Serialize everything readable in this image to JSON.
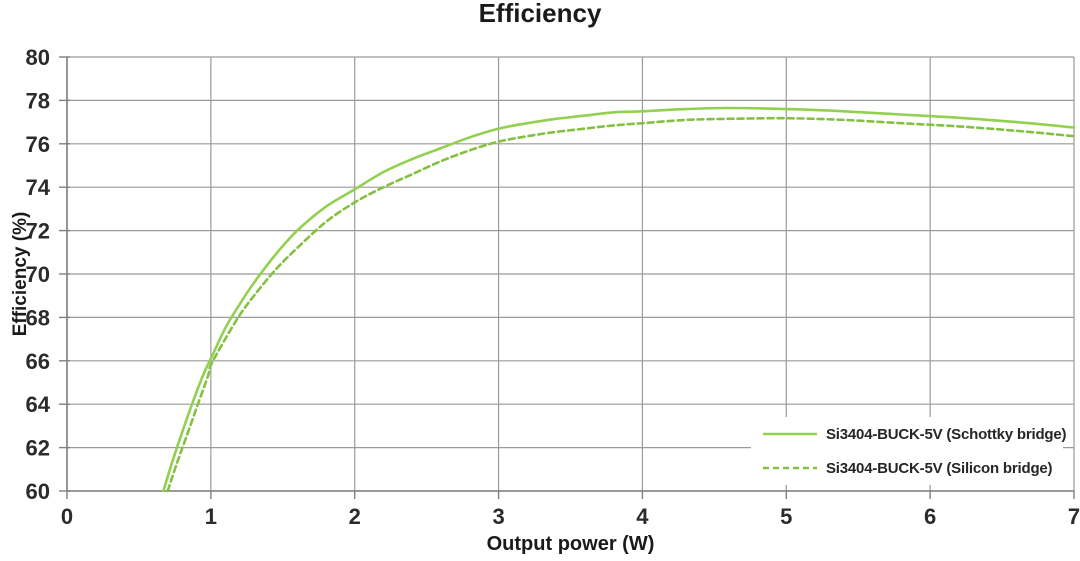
{
  "chart_data": {
    "type": "line",
    "title": "Efficiency",
    "xlabel": "Output power (W)",
    "ylabel": "Efficiency (%)",
    "xlim": [
      0,
      7
    ],
    "ylim": [
      60,
      80
    ],
    "x_ticks": [
      0,
      1,
      2,
      3,
      4,
      5,
      6,
      7
    ],
    "y_ticks": [
      60,
      62,
      64,
      66,
      68,
      70,
      72,
      74,
      76,
      78,
      80
    ],
    "grid": true,
    "legend_position": "inside-bottom-right",
    "colors": {
      "gridline": "#9a9a9a",
      "axis": "#808080",
      "tick_text": "#2b2b2b",
      "title_text": "#1a1a1a"
    },
    "series": [
      {
        "name": "Si3404-BUCK-5V (Schottky bridge)",
        "style": "solid",
        "color": "#92d050",
        "points": [
          [
            0.67,
            60.0
          ],
          [
            0.73,
            61.3
          ],
          [
            0.8,
            62.7
          ],
          [
            0.88,
            64.2
          ],
          [
            0.95,
            65.4
          ],
          [
            1.0,
            66.1
          ],
          [
            1.1,
            67.5
          ],
          [
            1.2,
            68.6
          ],
          [
            1.3,
            69.6
          ],
          [
            1.45,
            70.9
          ],
          [
            1.6,
            72.0
          ],
          [
            1.8,
            73.1
          ],
          [
            2.0,
            73.9
          ],
          [
            2.2,
            74.7
          ],
          [
            2.4,
            75.3
          ],
          [
            2.6,
            75.8
          ],
          [
            2.8,
            76.3
          ],
          [
            3.0,
            76.7
          ],
          [
            3.2,
            76.95
          ],
          [
            3.4,
            77.15
          ],
          [
            3.6,
            77.3
          ],
          [
            3.8,
            77.45
          ],
          [
            4.0,
            77.5
          ],
          [
            4.3,
            77.6
          ],
          [
            4.6,
            77.65
          ],
          [
            5.0,
            77.6
          ],
          [
            5.4,
            77.5
          ],
          [
            5.8,
            77.35
          ],
          [
            6.2,
            77.2
          ],
          [
            6.6,
            77.0
          ],
          [
            7.0,
            76.75
          ]
        ]
      },
      {
        "name": "Si3404-BUCK-5V (Silicon bridge)",
        "style": "dashed",
        "color": "#84c141",
        "points": [
          [
            0.7,
            60.0
          ],
          [
            0.76,
            61.2
          ],
          [
            0.83,
            62.5
          ],
          [
            0.91,
            64.0
          ],
          [
            0.98,
            65.3
          ],
          [
            1.0,
            65.8
          ],
          [
            1.1,
            67.0
          ],
          [
            1.2,
            68.1
          ],
          [
            1.3,
            69.0
          ],
          [
            1.45,
            70.2
          ],
          [
            1.6,
            71.2
          ],
          [
            1.8,
            72.4
          ],
          [
            2.0,
            73.3
          ],
          [
            2.2,
            74.0
          ],
          [
            2.4,
            74.6
          ],
          [
            2.6,
            75.2
          ],
          [
            2.8,
            75.7
          ],
          [
            3.0,
            76.1
          ],
          [
            3.2,
            76.35
          ],
          [
            3.4,
            76.55
          ],
          [
            3.6,
            76.7
          ],
          [
            3.8,
            76.85
          ],
          [
            4.0,
            76.95
          ],
          [
            4.3,
            77.1
          ],
          [
            4.6,
            77.15
          ],
          [
            5.0,
            77.18
          ],
          [
            5.4,
            77.1
          ],
          [
            5.8,
            76.95
          ],
          [
            6.2,
            76.8
          ],
          [
            6.6,
            76.6
          ],
          [
            7.0,
            76.35
          ]
        ]
      }
    ]
  }
}
